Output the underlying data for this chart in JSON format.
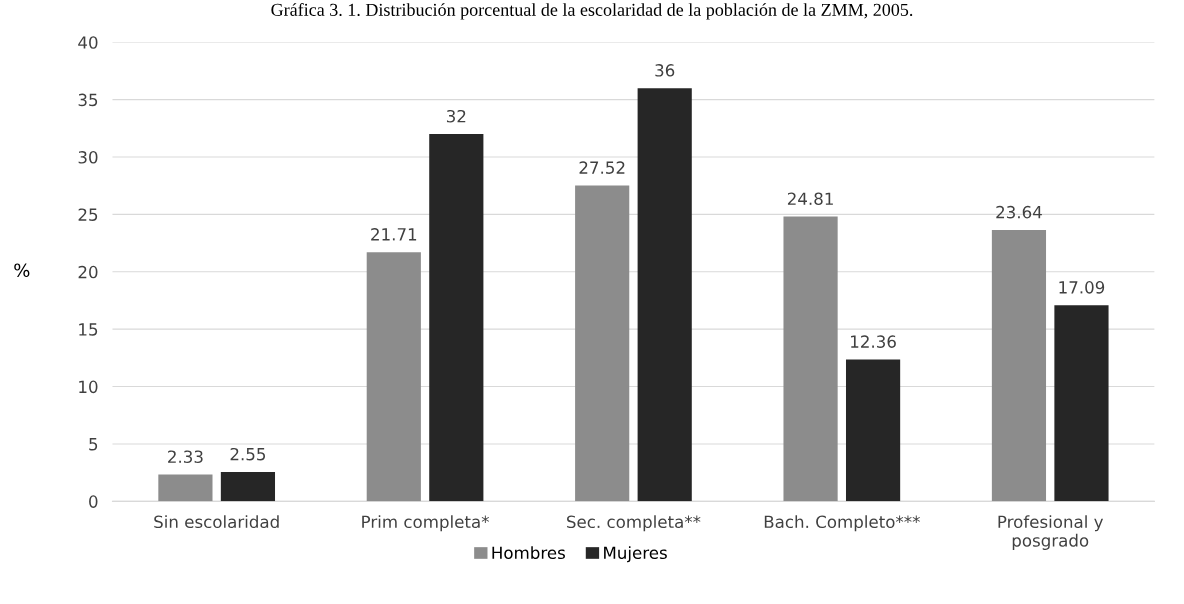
{
  "chart_data": {
    "type": "bar",
    "title": "Gráfica 3. 1. Distribución porcentual de la escolaridad de la población de la ZMM, 2005.",
    "ylabel": "%",
    "categories": [
      "Sin escolaridad",
      "Prim completa*",
      "Sec. completa**",
      "Bach. Completo***",
      "Profesional y\nposgrado"
    ],
    "series": [
      {
        "name": "Hombres",
        "color": "#8c8c8c",
        "values": [
          2.33,
          21.71,
          27.52,
          24.81,
          23.64
        ]
      },
      {
        "name": "Mujeres",
        "color": "#262626",
        "values": [
          2.55,
          32,
          36,
          12.36,
          17.09
        ]
      }
    ],
    "ylim": [
      0,
      40
    ],
    "yticks": [
      0,
      5,
      10,
      15,
      20,
      25,
      30,
      35,
      40
    ],
    "grid": "y",
    "legend": "bottom",
    "data_labels": true
  }
}
